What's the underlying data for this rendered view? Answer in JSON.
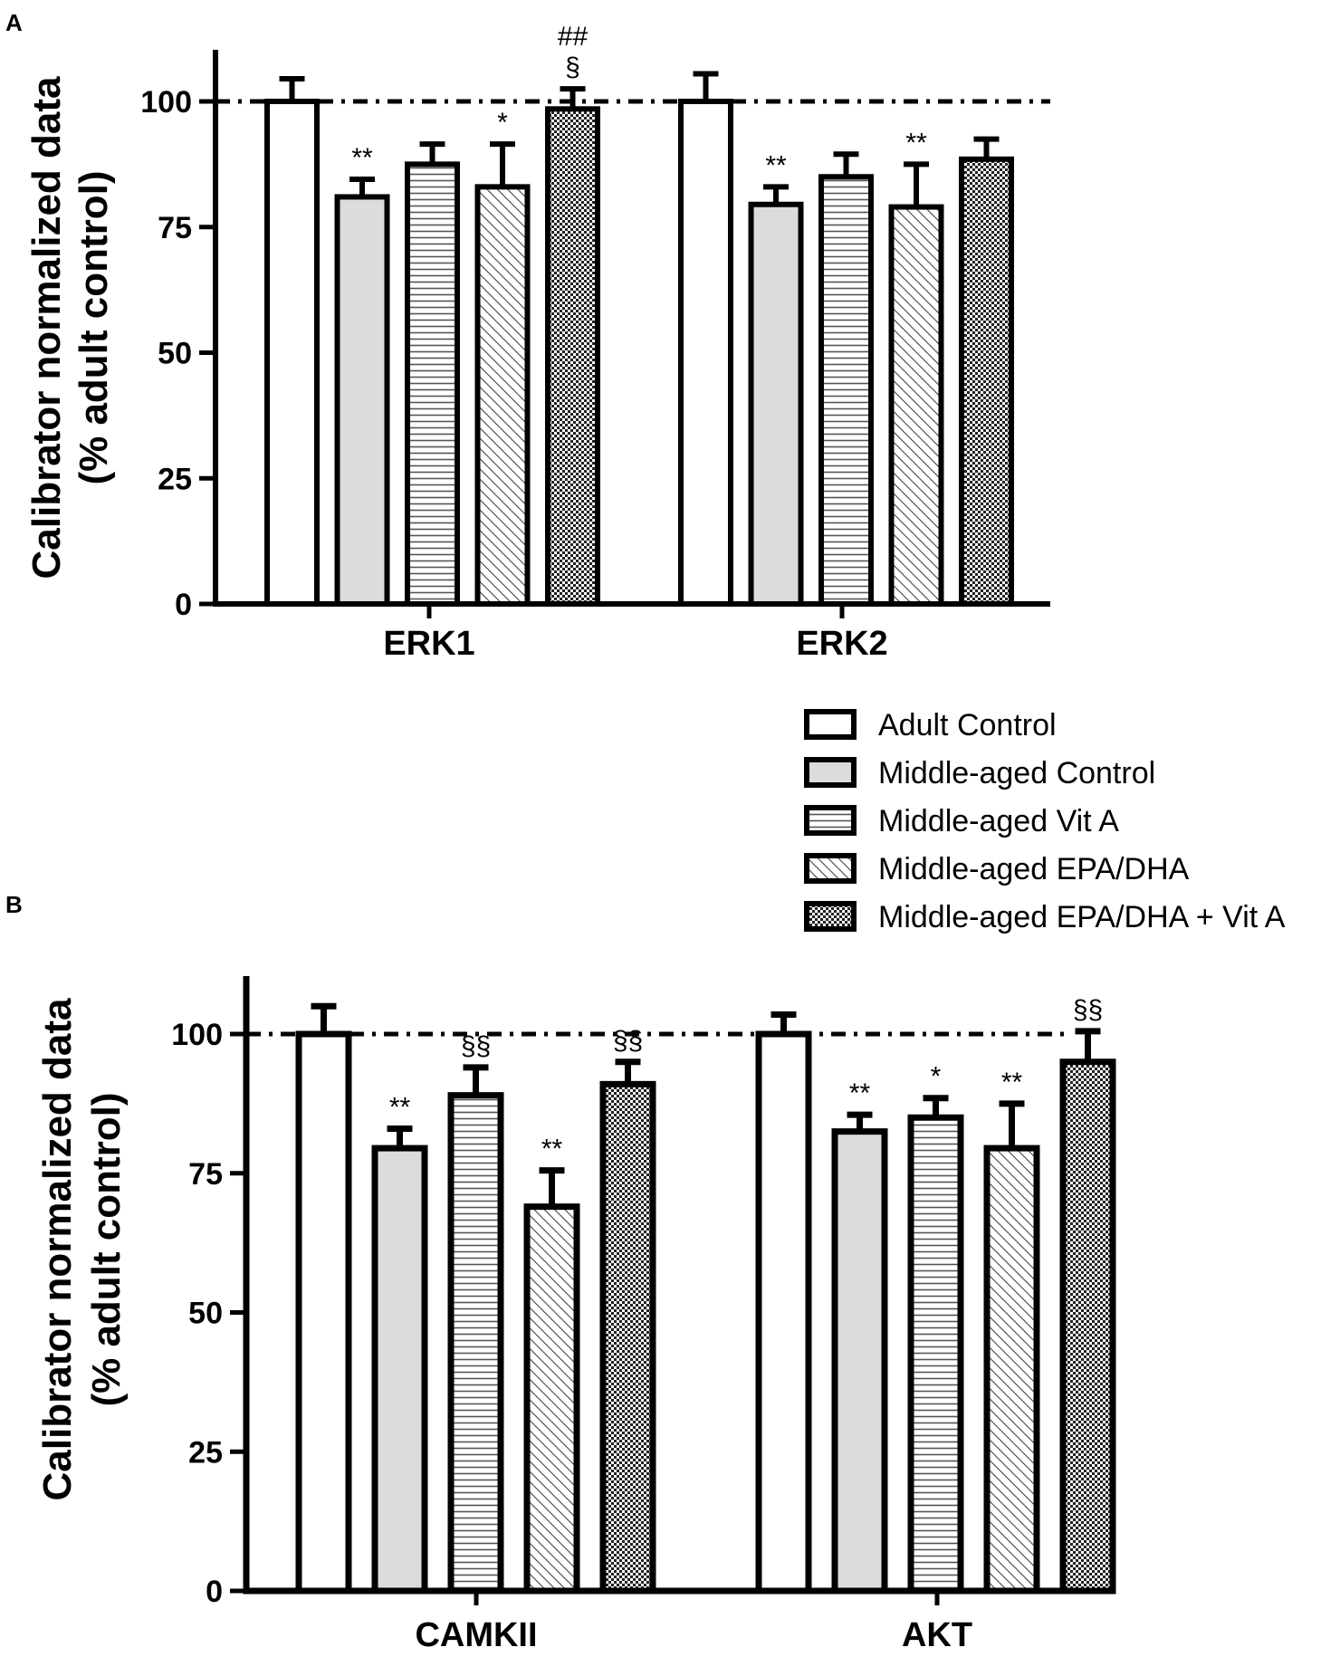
{
  "legend": [
    {
      "label": "Adult Control",
      "pattern": "white"
    },
    {
      "label": "Middle-aged Control",
      "pattern": "grey"
    },
    {
      "label": "Middle-aged Vit A",
      "pattern": "hlines"
    },
    {
      "label": "Middle-aged EPA/DHA",
      "pattern": "diag"
    },
    {
      "label": "Middle-aged EPA/DHA + Vit A",
      "pattern": "checker"
    }
  ],
  "colors": {
    "grey_fill": "#dcdcdc",
    "stroke": "#000000"
  },
  "chart_data": [
    {
      "panel": "A",
      "type": "bar",
      "ylabel_line1": "Calibrator normalized data",
      "ylabel_line2": "(% adult control)",
      "ylim": [
        0,
        110
      ],
      "yticks": [
        0,
        25,
        50,
        75,
        100
      ],
      "reference_line": 100,
      "categories": [
        "ERK1",
        "ERK2"
      ],
      "series": [
        {
          "name": "Adult Control",
          "values": [
            100,
            100
          ],
          "errors": [
            4.5,
            5.5
          ],
          "annotations": [
            "",
            ""
          ]
        },
        {
          "name": "Middle-aged Control",
          "values": [
            81,
            79.5
          ],
          "errors": [
            3.5,
            3.5
          ],
          "annotations": [
            "**",
            "**"
          ]
        },
        {
          "name": "Middle-aged Vit A",
          "values": [
            87.5,
            85
          ],
          "errors": [
            4,
            4.5
          ],
          "annotations": [
            "",
            ""
          ]
        },
        {
          "name": "Middle-aged EPA/DHA",
          "values": [
            83,
            79
          ],
          "errors": [
            8.5,
            8.5
          ],
          "annotations": [
            "*",
            "**"
          ]
        },
        {
          "name": "Middle-aged EPA/DHA + Vit A",
          "values": [
            98.5,
            88.5
          ],
          "errors": [
            4,
            4
          ],
          "annotations": [
            "##\n§",
            ""
          ]
        }
      ]
    },
    {
      "panel": "B",
      "type": "bar",
      "ylabel_line1": "Calibrator normalized data",
      "ylabel_line2": "(% adult  control)",
      "ylim": [
        0,
        110
      ],
      "yticks": [
        0,
        25,
        50,
        75,
        100
      ],
      "reference_line": 100,
      "categories": [
        "CAMKII",
        "AKT"
      ],
      "series": [
        {
          "name": "Adult Control",
          "values": [
            100,
            100
          ],
          "errors": [
            5,
            3.5
          ],
          "annotations": [
            "",
            ""
          ]
        },
        {
          "name": "Middle-aged Control",
          "values": [
            79.5,
            82.5
          ],
          "errors": [
            3.5,
            3
          ],
          "annotations": [
            "**",
            "**"
          ]
        },
        {
          "name": "Middle-aged Vit A",
          "values": [
            89,
            85
          ],
          "errors": [
            5,
            3.5
          ],
          "annotations": [
            "§§",
            "*"
          ]
        },
        {
          "name": "Middle-aged EPA/DHA",
          "values": [
            69,
            79.5
          ],
          "errors": [
            6.5,
            8
          ],
          "annotations": [
            "**",
            "**"
          ]
        },
        {
          "name": "Middle-aged EPA/DHA + Vit A",
          "values": [
            91,
            95
          ],
          "errors": [
            4,
            5.5
          ],
          "annotations": [
            "§§",
            "§§"
          ]
        }
      ]
    }
  ]
}
